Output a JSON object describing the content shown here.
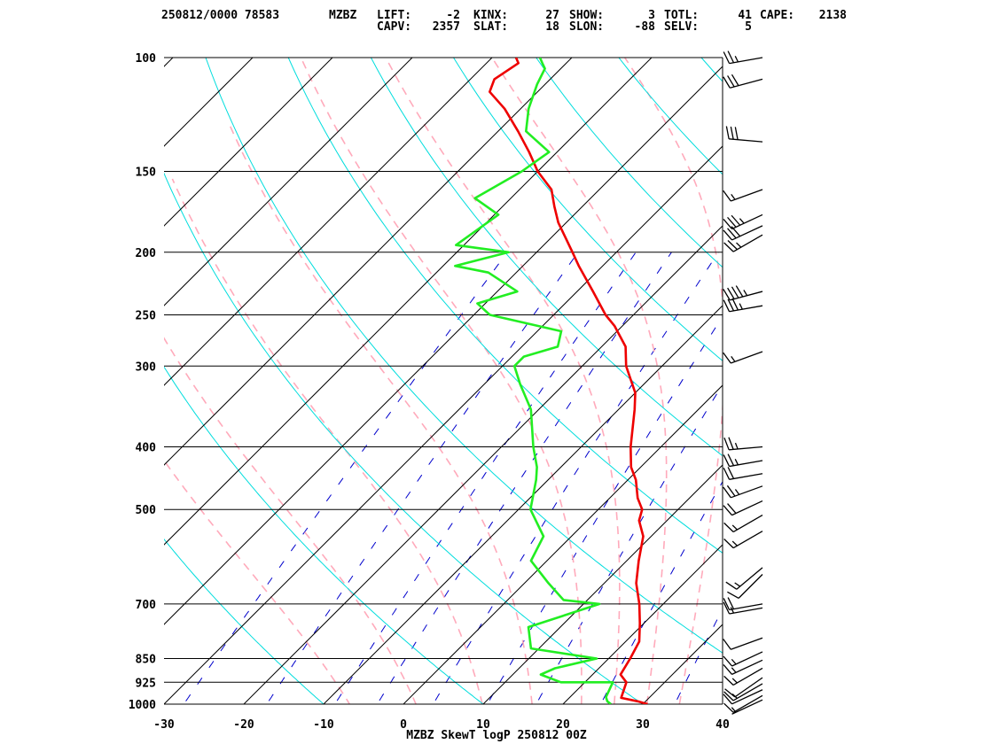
{
  "header": {
    "row1": [
      {
        "k": "stamp",
        "text": "250812/0000 78583"
      },
      {
        "k": "station",
        "text": "MZBZ"
      },
      {
        "k": "lift_label",
        "text": "LIFT:"
      },
      {
        "k": "lift_value",
        "text": "-2"
      },
      {
        "k": "kinx_label",
        "text": "KINX:"
      },
      {
        "k": "kinx_value",
        "text": "27"
      },
      {
        "k": "show_label",
        "text": "SHOW:"
      },
      {
        "k": "show_value",
        "text": "3"
      },
      {
        "k": "totl_label",
        "text": "TOTL:"
      },
      {
        "k": "totl_value",
        "text": "41"
      },
      {
        "k": "cape_label",
        "text": "CAPE:"
      },
      {
        "k": "cape_value",
        "text": "2138"
      }
    ],
    "row2": [
      {
        "k": "capv_label",
        "text": "CAPV:"
      },
      {
        "k": "capv_value",
        "text": "2357"
      },
      {
        "k": "slat_label",
        "text": "SLAT:"
      },
      {
        "k": "slat_value",
        "text": "18"
      },
      {
        "k": "slon_label",
        "text": "SLON:"
      },
      {
        "k": "slon_value",
        "text": "-88"
      },
      {
        "k": "selv_label",
        "text": "SELV:"
      },
      {
        "k": "selv_value",
        "text": "5"
      }
    ]
  },
  "footer": {
    "title": "MZBZ SkewT logP 250812 00Z"
  },
  "colors": {
    "temperature": "#ee0000",
    "dewpoint": "#22ee22",
    "isotherm": "#000000",
    "dry_adiabat": "#00dddd",
    "moist_adiabat": "#ffaabb",
    "mixing_ratio": "#0000cc",
    "isobar": "#000000",
    "wind_barb": "#000000"
  },
  "chart_data": {
    "type": "line",
    "skew_t": true,
    "y_scale": "log-pressure",
    "xlim": [
      -30,
      40
    ],
    "ylim": [
      1000,
      100
    ],
    "x_ticks": [
      "-30",
      "-20",
      "-10",
      "0",
      "10",
      "20",
      "30",
      "40"
    ],
    "y_ticks": [
      "100",
      "150",
      "200",
      "250",
      "300",
      "400",
      "500",
      "700",
      "850",
      "925",
      "1000"
    ],
    "grid": true,
    "series": [
      {
        "key": "temperature",
        "points": [
          [
            1000,
            30.6
          ],
          [
            990,
            29.0
          ],
          [
            978,
            26.5
          ],
          [
            925,
            25.2
          ],
          [
            900,
            23.5
          ],
          [
            850,
            22.7
          ],
          [
            800,
            21.7
          ],
          [
            750,
            19.5
          ],
          [
            700,
            17.0
          ],
          [
            650,
            14.0
          ],
          [
            600,
            11.5
          ],
          [
            550,
            9.0
          ],
          [
            520,
            6.5
          ],
          [
            500,
            5.5
          ],
          [
            480,
            3.5
          ],
          [
            450,
            1.0
          ],
          [
            430,
            -1.2
          ],
          [
            400,
            -3.8
          ],
          [
            350,
            -8.0
          ],
          [
            330,
            -10.0
          ],
          [
            300,
            -14.5
          ],
          [
            280,
            -17.0
          ],
          [
            260,
            -21.0
          ],
          [
            250,
            -23.5
          ],
          [
            230,
            -28.0
          ],
          [
            210,
            -33.0
          ],
          [
            200,
            -35.5
          ],
          [
            180,
            -41.0
          ],
          [
            170,
            -43.5
          ],
          [
            160,
            -46.0
          ],
          [
            150,
            -50.0
          ],
          [
            140,
            -53.5
          ],
          [
            130,
            -57.5
          ],
          [
            120,
            -62.0
          ],
          [
            113,
            -66.0
          ],
          [
            108,
            -67.0
          ],
          [
            102,
            -66.0
          ],
          [
            100,
            -67.0
          ]
        ]
      },
      {
        "key": "dewpoint",
        "points": [
          [
            1000,
            26.0
          ],
          [
            990,
            25.2
          ],
          [
            975,
            24.5
          ],
          [
            925,
            23.5
          ],
          [
            925,
            17.0
          ],
          [
            900,
            13.5
          ],
          [
            880,
            14.5
          ],
          [
            850,
            18.5
          ],
          [
            820,
            9.0
          ],
          [
            760,
            6.0
          ],
          [
            700,
            12.0
          ],
          [
            690,
            7.0
          ],
          [
            650,
            3.0
          ],
          [
            600,
            -2.0
          ],
          [
            550,
            -3.5
          ],
          [
            500,
            -8.5
          ],
          [
            450,
            -11.5
          ],
          [
            430,
            -13.0
          ],
          [
            400,
            -16.0
          ],
          [
            350,
            -21.0
          ],
          [
            320,
            -25.5
          ],
          [
            300,
            -28.5
          ],
          [
            290,
            -28.5
          ],
          [
            280,
            -25.5
          ],
          [
            265,
            -27.0
          ],
          [
            250,
            -38.0
          ],
          [
            240,
            -41.0
          ],
          [
            230,
            -37.5
          ],
          [
            215,
            -43.5
          ],
          [
            210,
            -48.5
          ],
          [
            200,
            -43.5
          ],
          [
            195,
            -51.0
          ],
          [
            175,
            -49.5
          ],
          [
            165,
            -54.5
          ],
          [
            150,
            -52.0
          ],
          [
            140,
            -51.0
          ],
          [
            130,
            -56.5
          ],
          [
            120,
            -59.0
          ],
          [
            110,
            -61.0
          ],
          [
            104,
            -62.0
          ],
          [
            102,
            -63.0
          ],
          [
            100,
            -64.0
          ]
        ]
      }
    ],
    "wind_barbs": [
      {
        "p": 100,
        "dir": 260,
        "spd": 25
      },
      {
        "p": 108,
        "dir": 255,
        "spd": 30
      },
      {
        "p": 135,
        "dir": 275,
        "spd": 30
      },
      {
        "p": 160,
        "dir": 250,
        "spd": 15
      },
      {
        "p": 175,
        "dir": 245,
        "spd": 35
      },
      {
        "p": 182,
        "dir": 245,
        "spd": 30
      },
      {
        "p": 188,
        "dir": 240,
        "spd": 25
      },
      {
        "p": 230,
        "dir": 255,
        "spd": 45
      },
      {
        "p": 242,
        "dir": 260,
        "spd": 35
      },
      {
        "p": 285,
        "dir": 250,
        "spd": 15
      },
      {
        "p": 400,
        "dir": 265,
        "spd": 25
      },
      {
        "p": 420,
        "dir": 260,
        "spd": 25
      },
      {
        "p": 440,
        "dir": 260,
        "spd": 20
      },
      {
        "p": 460,
        "dir": 250,
        "spd": 25
      },
      {
        "p": 485,
        "dir": 245,
        "spd": 20
      },
      {
        "p": 510,
        "dir": 240,
        "spd": 15
      },
      {
        "p": 540,
        "dir": 240,
        "spd": 15
      },
      {
        "p": 615,
        "dir": 230,
        "spd": 15
      },
      {
        "p": 630,
        "dir": 225,
        "spd": 10
      },
      {
        "p": 700,
        "dir": 260,
        "spd": 20
      },
      {
        "p": 710,
        "dir": 260,
        "spd": 15
      },
      {
        "p": 790,
        "dir": 250,
        "spd": 10
      },
      {
        "p": 830,
        "dir": 245,
        "spd": 15
      },
      {
        "p": 855,
        "dir": 245,
        "spd": 15
      },
      {
        "p": 880,
        "dir": 240,
        "spd": 15
      },
      {
        "p": 910,
        "dir": 235,
        "spd": 10
      },
      {
        "p": 930,
        "dir": 240,
        "spd": 15
      },
      {
        "p": 950,
        "dir": 245,
        "spd": 10
      },
      {
        "p": 970,
        "dir": 240,
        "spd": 10
      },
      {
        "p": 985,
        "dir": 245,
        "spd": 5
      }
    ]
  }
}
